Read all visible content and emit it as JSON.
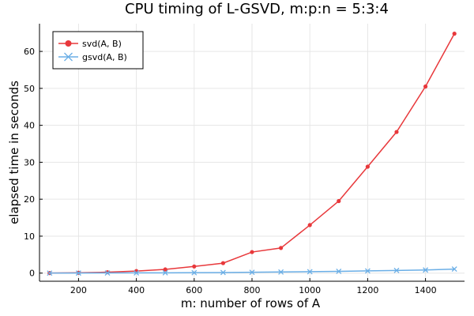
{
  "chart_data": {
    "type": "line",
    "title": "CPU timing of L-GSVD, m:p:n = 5:3:4",
    "xlabel": "m: number of rows of A",
    "ylabel": "elapsed time in seconds",
    "xlim": [
      65,
      1535
    ],
    "ylim": [
      -2.2,
      67.5
    ],
    "xticks": [
      200,
      400,
      600,
      800,
      1000,
      1200,
      1400
    ],
    "yticks": [
      0,
      10,
      20,
      30,
      40,
      50,
      60
    ],
    "grid": true,
    "legend_position": "top-left",
    "x": [
      100,
      200,
      300,
      400,
      500,
      600,
      700,
      800,
      900,
      1000,
      1100,
      1200,
      1300,
      1400,
      1500
    ],
    "series": [
      {
        "name": "svd(A, B)",
        "color": "#e8383b",
        "marker": "circle",
        "values": [
          0.02,
          0.1,
          0.25,
          0.55,
          1.0,
          1.8,
          2.7,
          5.7,
          6.8,
          13.0,
          19.5,
          28.8,
          38.2,
          50.5,
          64.8
        ]
      },
      {
        "name": "gsvd(A, B)",
        "color": "#6aaee6",
        "marker": "x",
        "values": [
          0.01,
          0.02,
          0.04,
          0.06,
          0.08,
          0.12,
          0.16,
          0.22,
          0.3,
          0.38,
          0.48,
          0.6,
          0.72,
          0.85,
          1.1
        ]
      }
    ]
  }
}
